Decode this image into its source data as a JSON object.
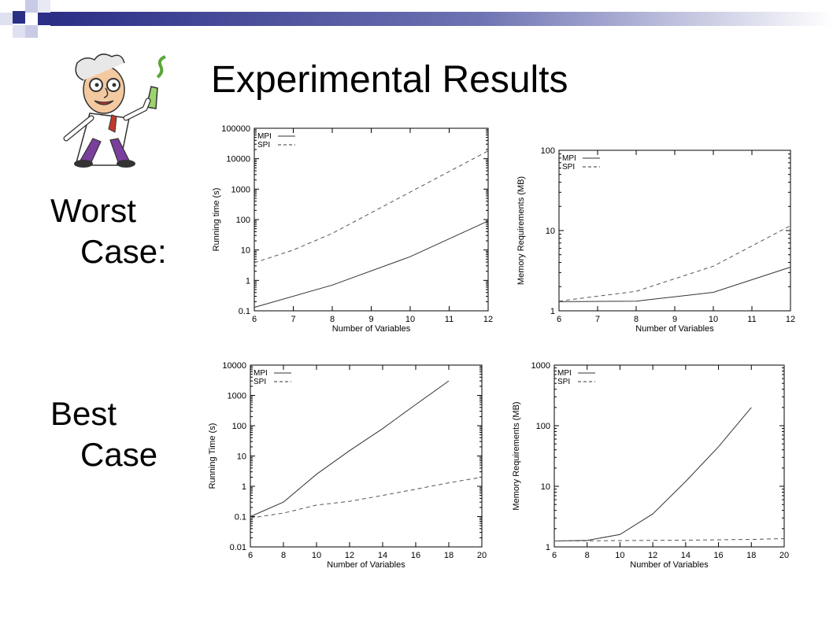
{
  "slide": {
    "title": "Experimental Results",
    "row_labels": [
      {
        "line1": "Worst",
        "line2": "Case:"
      },
      {
        "line1": "Best",
        "line2": "Case"
      }
    ],
    "colors": {
      "header_navy": "#2b2f86",
      "chart_line": "#000000",
      "clipart_coat": "#ffffff"
    },
    "icons": {
      "clipart": "mad-scientist-icon"
    }
  },
  "chart_data": [
    {
      "type": "line",
      "scale_y": "log",
      "xlabel": "Number of Variables",
      "ylabel": "Running time (s)",
      "x_ticks": [
        6,
        7,
        8,
        9,
        10,
        11,
        12
      ],
      "y_ticks": [
        0.1,
        1,
        10,
        100,
        1000,
        10000,
        100000
      ],
      "y_tick_labels": [
        "0.1",
        "1",
        "10",
        "100",
        "1000",
        "10000",
        "100000"
      ],
      "xlim": [
        6,
        12
      ],
      "ylim": [
        0.1,
        100000
      ],
      "legend": "top-left",
      "grid": false,
      "series": [
        {
          "name": "MPI",
          "style": "solid",
          "x": [
            6,
            8,
            10,
            12
          ],
          "y": [
            0.13,
            0.7,
            6,
            90
          ]
        },
        {
          "name": "SPI",
          "style": "dashed",
          "x": [
            6,
            7,
            8,
            10,
            12
          ],
          "y": [
            3.8,
            10,
            35,
            800,
            18000
          ]
        }
      ]
    },
    {
      "type": "line",
      "scale_y": "log",
      "xlabel": "Number of Variables",
      "ylabel": "Memory Requirements (MB)",
      "x_ticks": [
        6,
        7,
        8,
        9,
        10,
        11,
        12
      ],
      "y_ticks": [
        1,
        10,
        100
      ],
      "y_tick_labels": [
        "1",
        "10",
        "100"
      ],
      "xlim": [
        6,
        12
      ],
      "ylim": [
        1,
        100
      ],
      "legend": "top-left",
      "grid": false,
      "series": [
        {
          "name": "MPI",
          "style": "solid",
          "x": [
            6,
            8,
            10,
            12
          ],
          "y": [
            1.3,
            1.32,
            1.7,
            3.5
          ]
        },
        {
          "name": "SPI",
          "style": "dashed",
          "x": [
            6,
            8,
            10,
            12
          ],
          "y": [
            1.32,
            1.75,
            3.6,
            11.5
          ]
        }
      ]
    },
    {
      "type": "line",
      "scale_y": "log",
      "xlabel": "Number of Variables",
      "ylabel": "Running Time (s)",
      "x_ticks": [
        6,
        8,
        10,
        12,
        14,
        16,
        18,
        20
      ],
      "y_ticks": [
        0.01,
        0.1,
        1,
        10,
        100,
        1000,
        10000
      ],
      "y_tick_labels": [
        "0.01",
        "0.1",
        "1",
        "10",
        "100",
        "1000",
        "10000"
      ],
      "xlim": [
        6,
        20
      ],
      "ylim": [
        0.01,
        10000
      ],
      "legend": "top-left",
      "grid": false,
      "series": [
        {
          "name": "MPI",
          "style": "solid",
          "x": [
            6,
            8,
            10,
            12,
            14,
            16,
            18
          ],
          "y": [
            0.1,
            0.3,
            2.5,
            15,
            80,
            500,
            3000
          ]
        },
        {
          "name": "SPI",
          "style": "dashed",
          "x": [
            6,
            8,
            10,
            12,
            14,
            16,
            18,
            20
          ],
          "y": [
            0.09,
            0.13,
            0.24,
            0.32,
            0.5,
            0.8,
            1.3,
            2
          ]
        }
      ]
    },
    {
      "type": "line",
      "scale_y": "log",
      "xlabel": "Number of Variables",
      "ylabel": "Memory Requirements (MB)",
      "x_ticks": [
        6,
        8,
        10,
        12,
        14,
        16,
        18,
        20
      ],
      "y_ticks": [
        1,
        10,
        100,
        1000
      ],
      "y_tick_labels": [
        "1",
        "10",
        "100",
        "1000"
      ],
      "xlim": [
        6,
        20
      ],
      "ylim": [
        1,
        1000
      ],
      "legend": "top-left",
      "grid": false,
      "series": [
        {
          "name": "MPI",
          "style": "solid",
          "x": [
            6,
            8,
            10,
            12,
            14,
            16,
            18
          ],
          "y": [
            1.25,
            1.28,
            1.6,
            3.5,
            12,
            45,
            200
          ]
        },
        {
          "name": "SPI",
          "style": "dashed",
          "x": [
            6,
            8,
            10,
            12,
            14,
            16,
            18,
            20
          ],
          "y": [
            1.25,
            1.26,
            1.27,
            1.28,
            1.29,
            1.31,
            1.33,
            1.37
          ]
        }
      ]
    }
  ]
}
